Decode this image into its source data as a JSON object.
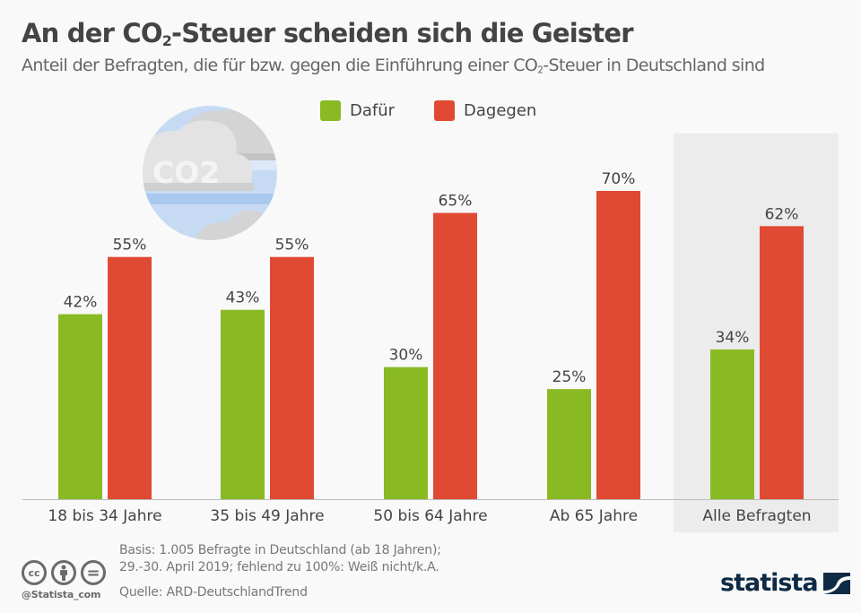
{
  "header": {
    "title_pre": "An der CO",
    "title_sub": "2",
    "title_post": "-Steuer scheiden sich die Geister",
    "subtitle_pre": "Anteil der Befragten, die für bzw. gegen die Einführung einer CO",
    "subtitle_sub": "2",
    "subtitle_post": "-Steuer in Deutschland sind"
  },
  "illustration": {
    "icon": "co2-cloud-icon",
    "text": "CO2"
  },
  "chart_data": {
    "type": "bar",
    "title": "An der CO2-Steuer scheiden sich die Geister",
    "subtitle": "Anteil der Befragten, die für bzw. gegen die Einführung einer CO2-Steuer in Deutschland sind",
    "xlabel": "",
    "ylabel": "",
    "ylim": [
      0,
      100
    ],
    "grid": false,
    "legend_position": "top-center",
    "categories": [
      "18 bis 34 Jahre",
      "35 bis 49 Jahre",
      "50 bis 64 Jahre",
      "Ab 65 Jahre",
      "Alle Befragten"
    ],
    "highlighted_category": "Alle Befragten",
    "series": [
      {
        "name": "Dafür",
        "color": "#89ba24",
        "values": [
          42,
          43,
          30,
          25,
          34
        ],
        "labels": [
          "42%",
          "43%",
          "30%",
          "25%",
          "34%"
        ]
      },
      {
        "name": "Dagegen",
        "color": "#e04a33",
        "values": [
          55,
          55,
          65,
          70,
          62
        ],
        "labels": [
          "55%",
          "55%",
          "65%",
          "70%",
          "62%"
        ]
      }
    ]
  },
  "footer": {
    "license_icons": [
      "cc-icon",
      "by-icon",
      "nd-icon"
    ],
    "cc_text": "cc",
    "nd_text": "=",
    "handle": "@Statista_com",
    "note_line1": "Basis: 1.005 Befragte in Deutschland (ab 18 Jahren);",
    "note_line2": "29.-30. April 2019; fehlend zu 100%: Weiß nicht/k.A.",
    "source": "Quelle: ARD-DeutschlandTrend",
    "brand": "statista"
  },
  "colors": {
    "dafuer": "#89ba24",
    "dagegen": "#e04a33",
    "highlight_bg": "#ececec",
    "brand": "#0f2a44"
  }
}
